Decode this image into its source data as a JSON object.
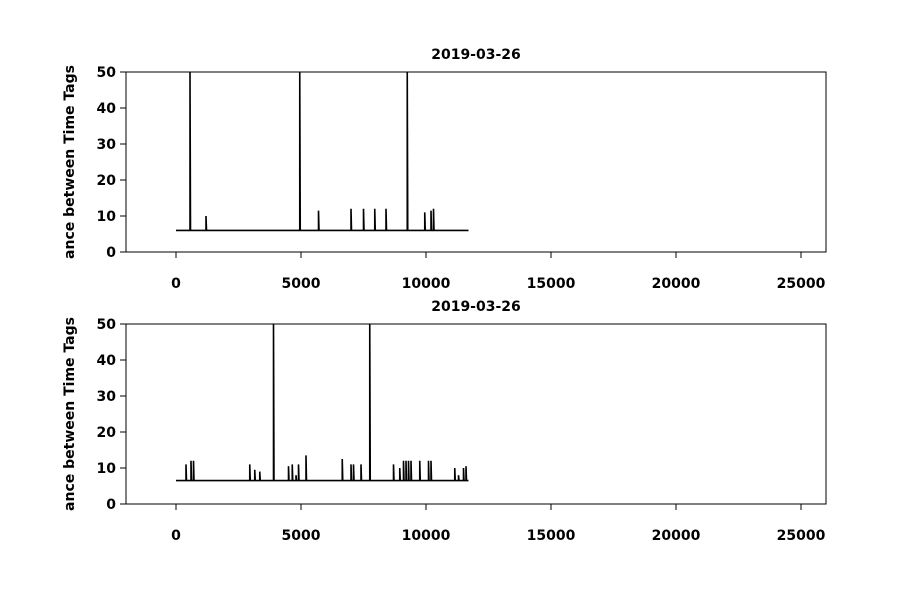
{
  "chart_data": [
    {
      "type": "line",
      "title": "2019-03-26",
      "ylabel": "ance between Time Tags",
      "color": "#000000",
      "xlim": [
        -2000,
        26000
      ],
      "xticks": [
        0,
        5000,
        10000,
        15000,
        20000,
        25000
      ],
      "ylim": [
        0,
        50
      ],
      "yticks": [
        0,
        10,
        20,
        30,
        40,
        50
      ],
      "x": [
        0,
        560,
        560,
        580,
        1200,
        1200,
        1220,
        4950,
        4950,
        4970,
        5700,
        5700,
        5720,
        7000,
        7000,
        7020,
        7500,
        7500,
        7520,
        7950,
        7950,
        7970,
        8400,
        8400,
        8420,
        9250,
        9250,
        9270,
        9950,
        9950,
        9970,
        10200,
        10200,
        10220,
        10300,
        10300,
        10320,
        11700
      ],
      "values": [
        6,
        6,
        50,
        6,
        6,
        10,
        6,
        6,
        50,
        6,
        6,
        11.5,
        6,
        6,
        12,
        6,
        6,
        12,
        6,
        6,
        12,
        6,
        6,
        12,
        6,
        6,
        50,
        6,
        6,
        11,
        6,
        6,
        11.5,
        6,
        6,
        12,
        6,
        6
      ]
    },
    {
      "type": "line",
      "title": "2019-03-26",
      "ylabel": "ance between Time Tags",
      "color": "#000000",
      "xlim": [
        -2000,
        26000
      ],
      "xticks": [
        0,
        5000,
        10000,
        15000,
        20000,
        25000
      ],
      "ylim": [
        0,
        50
      ],
      "yticks": [
        0,
        10,
        20,
        30,
        40,
        50
      ],
      "x": [
        0,
        400,
        400,
        420,
        600,
        600,
        620,
        700,
        700,
        720,
        2950,
        2950,
        2970,
        3150,
        3150,
        3170,
        3350,
        3350,
        3370,
        3900,
        3900,
        3920,
        4500,
        4500,
        4520,
        4650,
        4650,
        4670,
        4800,
        4800,
        4820,
        4900,
        4900,
        4920,
        5200,
        5200,
        5220,
        6650,
        6650,
        6670,
        7000,
        7000,
        7020,
        7100,
        7100,
        7120,
        7400,
        7400,
        7420,
        7750,
        7750,
        7770,
        8700,
        8700,
        8720,
        8950,
        8950,
        8970,
        9100,
        9100,
        9120,
        9200,
        9200,
        9220,
        9300,
        9300,
        9320,
        9400,
        9400,
        9420,
        9750,
        9750,
        9770,
        10100,
        10100,
        10120,
        10200,
        10200,
        10220,
        11150,
        11150,
        11170,
        11300,
        11300,
        11320,
        11500,
        11500,
        11520,
        11600,
        11600,
        11620,
        11700
      ],
      "values": [
        6.5,
        6.5,
        11,
        6.5,
        6.5,
        12,
        6.5,
        6.5,
        12,
        6.5,
        6.5,
        11,
        6.5,
        6.5,
        9.5,
        6.5,
        6.5,
        9,
        6.5,
        6.5,
        50,
        6.5,
        6.5,
        10.5,
        6.5,
        6.5,
        11,
        6.5,
        6.5,
        8,
        6.5,
        6.5,
        11,
        6.5,
        6.5,
        13.5,
        6.5,
        6.5,
        12.5,
        6.5,
        6.5,
        11,
        6.5,
        6.5,
        11,
        6.5,
        6.5,
        11,
        6.5,
        6.5,
        50,
        6.5,
        6.5,
        11,
        6.5,
        6.5,
        10,
        6.5,
        6.5,
        12,
        6.5,
        6.5,
        12,
        6.5,
        6.5,
        12,
        6.5,
        6.5,
        12,
        6.5,
        6.5,
        12,
        6.5,
        6.5,
        12,
        6.5,
        6.5,
        12,
        6.5,
        6.5,
        10,
        6.5,
        6.5,
        8,
        6.5,
        6.5,
        10,
        6.5,
        6.5,
        10.5,
        6.5,
        6.5
      ]
    }
  ]
}
